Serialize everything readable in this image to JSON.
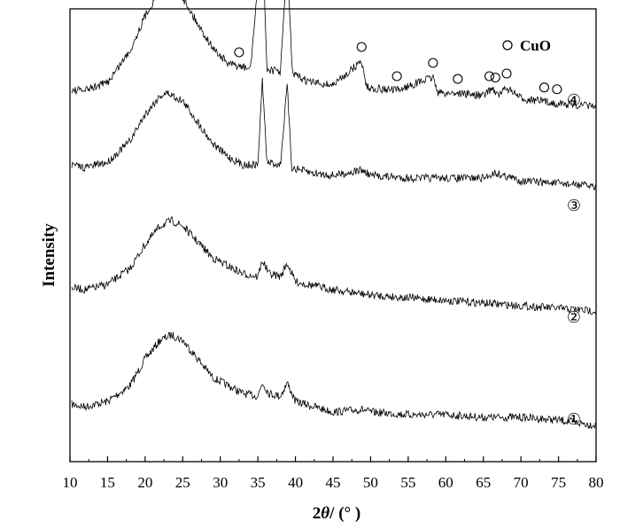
{
  "chart_data": {
    "type": "line",
    "xlabel_prefix": "2",
    "xlabel_var": "θ",
    "xlabel_suffix": "/ (°  )",
    "ylabel": "Intensity",
    "xlim": [
      10,
      80
    ],
    "xticks": [
      "10",
      "15",
      "20",
      "25",
      "30",
      "35",
      "40",
      "45",
      "50",
      "55",
      "60",
      "65",
      "70",
      "75",
      "80"
    ],
    "legend": {
      "marker": "open-circle",
      "label": "CuO",
      "position": "top-right"
    },
    "series": [
      {
        "name": "①",
        "points": [
          [
            10,
            0.08
          ],
          [
            12,
            0.07
          ],
          [
            15,
            0.09
          ],
          [
            18,
            0.15
          ],
          [
            20,
            0.25
          ],
          [
            22,
            0.32
          ],
          [
            23.5,
            0.34
          ],
          [
            25,
            0.32
          ],
          [
            27,
            0.25
          ],
          [
            29,
            0.18
          ],
          [
            31,
            0.15
          ],
          [
            33,
            0.12
          ],
          [
            35,
            0.11
          ],
          [
            35.6,
            0.16
          ],
          [
            36.5,
            0.12
          ],
          [
            38,
            0.11
          ],
          [
            38.9,
            0.16
          ],
          [
            40,
            0.09
          ],
          [
            45,
            0.05
          ],
          [
            48.8,
            0.06
          ],
          [
            50,
            0.05
          ],
          [
            55,
            0.04
          ],
          [
            60,
            0.04
          ],
          [
            65,
            0.03
          ],
          [
            70,
            0.03
          ],
          [
            75,
            0.02
          ],
          [
            80,
            0.0
          ]
        ]
      },
      {
        "name": "②",
        "points": [
          [
            10,
            0.08
          ],
          [
            12,
            0.07
          ],
          [
            15,
            0.09
          ],
          [
            18,
            0.15
          ],
          [
            20,
            0.24
          ],
          [
            22,
            0.31
          ],
          [
            23.5,
            0.33
          ],
          [
            25,
            0.31
          ],
          [
            27,
            0.25
          ],
          [
            29,
            0.19
          ],
          [
            31,
            0.16
          ],
          [
            33,
            0.13
          ],
          [
            35,
            0.12
          ],
          [
            35.6,
            0.18
          ],
          [
            36.5,
            0.13
          ],
          [
            38,
            0.12
          ],
          [
            38.9,
            0.17
          ],
          [
            40,
            0.1
          ],
          [
            45,
            0.07
          ],
          [
            50,
            0.05
          ],
          [
            55,
            0.04
          ],
          [
            60,
            0.03
          ],
          [
            65,
            0.02
          ],
          [
            70,
            0.01
          ],
          [
            75,
            0.0
          ],
          [
            80,
            -0.01
          ]
        ]
      },
      {
        "name": "③",
        "points": [
          [
            10,
            0.08
          ],
          [
            12,
            0.07
          ],
          [
            15,
            0.09
          ],
          [
            18,
            0.17
          ],
          [
            20,
            0.27
          ],
          [
            22,
            0.34
          ],
          [
            23,
            0.35
          ],
          [
            25,
            0.32
          ],
          [
            27,
            0.24
          ],
          [
            29,
            0.16
          ],
          [
            31,
            0.11
          ],
          [
            33,
            0.08
          ],
          [
            35,
            0.08
          ],
          [
            35.6,
            0.4
          ],
          [
            36.2,
            0.09
          ],
          [
            38,
            0.08
          ],
          [
            38.9,
            0.38
          ],
          [
            39.5,
            0.07
          ],
          [
            42,
            0.05
          ],
          [
            45,
            0.04
          ],
          [
            48.8,
            0.06
          ],
          [
            50,
            0.04
          ],
          [
            55,
            0.03
          ],
          [
            60,
            0.03
          ],
          [
            65,
            0.03
          ],
          [
            66.5,
            0.05
          ],
          [
            70,
            0.02
          ],
          [
            75,
            0.01
          ],
          [
            80,
            0.0
          ]
        ]
      },
      {
        "name": "④",
        "points": [
          [
            10,
            0.0
          ],
          [
            12,
            0.0
          ],
          [
            15,
            0.03
          ],
          [
            18,
            0.15
          ],
          [
            20,
            0.28
          ],
          [
            22,
            0.38
          ],
          [
            23,
            0.4
          ],
          [
            25,
            0.35
          ],
          [
            27,
            0.25
          ],
          [
            29,
            0.16
          ],
          [
            31,
            0.1
          ],
          [
            32.5,
            0.09
          ],
          [
            34,
            0.08
          ],
          [
            35.6,
            0.58
          ],
          [
            36.2,
            0.08
          ],
          [
            38,
            0.07
          ],
          [
            38.9,
            0.48
          ],
          [
            39.6,
            0.06
          ],
          [
            42,
            0.03
          ],
          [
            45,
            0.02
          ],
          [
            48.8,
            0.11
          ],
          [
            49.5,
            0.01
          ],
          [
            53.5,
            0.0
          ],
          [
            58.3,
            0.05
          ],
          [
            59,
            -0.01
          ],
          [
            61.5,
            -0.01
          ],
          [
            65,
            -0.02
          ],
          [
            66.2,
            0.01
          ],
          [
            67,
            -0.02
          ],
          [
            68.1,
            0.01
          ],
          [
            70,
            -0.03
          ],
          [
            75,
            -0.05
          ],
          [
            80,
            -0.06
          ]
        ]
      }
    ],
    "cuo_markers": [
      32.5,
      35.6,
      39.0,
      48.8,
      53.5,
      58.3,
      61.6,
      65.8,
      66.6,
      68.1,
      73.1,
      74.8
    ]
  }
}
